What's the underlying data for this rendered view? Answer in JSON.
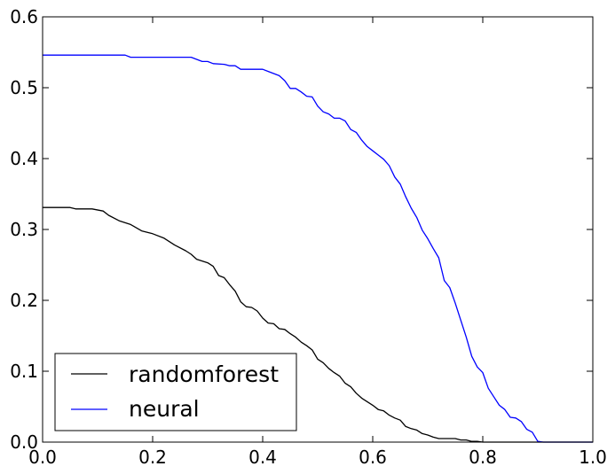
{
  "chart_data": {
    "type": "line",
    "title": "",
    "xlabel": "",
    "ylabel": "",
    "xlim": [
      0.0,
      1.0
    ],
    "ylim": [
      0.0,
      0.6
    ],
    "grid": false,
    "legend_position": "bottom-left",
    "xticks": [
      0.0,
      0.2,
      0.4,
      0.6,
      0.8,
      1.0
    ],
    "yticks": [
      0.0,
      0.1,
      0.2,
      0.3,
      0.4,
      0.5,
      0.6
    ],
    "xtick_labels": [
      "0.0",
      "0.2",
      "0.4",
      "0.6",
      "0.8",
      "1.0"
    ],
    "ytick_labels": [
      "0.0",
      "0.1",
      "0.2",
      "0.3",
      "0.4",
      "0.5",
      "0.6"
    ],
    "series": [
      {
        "name": "randomforest",
        "color": "#000000",
        "points": [
          [
            0.0,
            0.331
          ],
          [
            0.05,
            0.331
          ],
          [
            0.06,
            0.329
          ],
          [
            0.09,
            0.329
          ],
          [
            0.11,
            0.326
          ],
          [
            0.12,
            0.32
          ],
          [
            0.14,
            0.312
          ],
          [
            0.16,
            0.307
          ],
          [
            0.18,
            0.298
          ],
          [
            0.2,
            0.294
          ],
          [
            0.22,
            0.288
          ],
          [
            0.24,
            0.278
          ],
          [
            0.26,
            0.27
          ],
          [
            0.27,
            0.265
          ],
          [
            0.28,
            0.258
          ],
          [
            0.3,
            0.253
          ],
          [
            0.31,
            0.248
          ],
          [
            0.32,
            0.235
          ],
          [
            0.33,
            0.232
          ],
          [
            0.34,
            0.222
          ],
          [
            0.35,
            0.213
          ],
          [
            0.36,
            0.198
          ],
          [
            0.37,
            0.191
          ],
          [
            0.38,
            0.19
          ],
          [
            0.39,
            0.185
          ],
          [
            0.4,
            0.175
          ],
          [
            0.41,
            0.168
          ],
          [
            0.42,
            0.167
          ],
          [
            0.43,
            0.16
          ],
          [
            0.44,
            0.159
          ],
          [
            0.45,
            0.153
          ],
          [
            0.46,
            0.148
          ],
          [
            0.47,
            0.141
          ],
          [
            0.48,
            0.136
          ],
          [
            0.49,
            0.13
          ],
          [
            0.5,
            0.117
          ],
          [
            0.51,
            0.112
          ],
          [
            0.52,
            0.104
          ],
          [
            0.53,
            0.098
          ],
          [
            0.54,
            0.093
          ],
          [
            0.55,
            0.083
          ],
          [
            0.56,
            0.078
          ],
          [
            0.57,
            0.069
          ],
          [
            0.58,
            0.062
          ],
          [
            0.59,
            0.057
          ],
          [
            0.6,
            0.052
          ],
          [
            0.61,
            0.046
          ],
          [
            0.62,
            0.044
          ],
          [
            0.63,
            0.038
          ],
          [
            0.64,
            0.034
          ],
          [
            0.65,
            0.031
          ],
          [
            0.66,
            0.022
          ],
          [
            0.67,
            0.019
          ],
          [
            0.68,
            0.017
          ],
          [
            0.69,
            0.012
          ],
          [
            0.7,
            0.01
          ],
          [
            0.71,
            0.007
          ],
          [
            0.72,
            0.005
          ],
          [
            0.75,
            0.005
          ],
          [
            0.76,
            0.003
          ],
          [
            0.77,
            0.003
          ],
          [
            0.78,
            0.001
          ],
          [
            0.79,
            0.001
          ],
          [
            0.8,
            0.0
          ],
          [
            1.0,
            0.0
          ]
        ]
      },
      {
        "name": "neural",
        "color": "#0000ff",
        "points": [
          [
            0.0,
            0.546
          ],
          [
            0.15,
            0.546
          ],
          [
            0.16,
            0.543
          ],
          [
            0.27,
            0.543
          ],
          [
            0.28,
            0.54
          ],
          [
            0.29,
            0.537
          ],
          [
            0.3,
            0.537
          ],
          [
            0.31,
            0.534
          ],
          [
            0.33,
            0.533
          ],
          [
            0.34,
            0.531
          ],
          [
            0.35,
            0.531
          ],
          [
            0.36,
            0.526
          ],
          [
            0.4,
            0.526
          ],
          [
            0.41,
            0.523
          ],
          [
            0.42,
            0.52
          ],
          [
            0.43,
            0.517
          ],
          [
            0.44,
            0.51
          ],
          [
            0.45,
            0.499
          ],
          [
            0.46,
            0.499
          ],
          [
            0.47,
            0.494
          ],
          [
            0.48,
            0.488
          ],
          [
            0.49,
            0.487
          ],
          [
            0.5,
            0.474
          ],
          [
            0.51,
            0.466
          ],
          [
            0.52,
            0.463
          ],
          [
            0.53,
            0.457
          ],
          [
            0.54,
            0.457
          ],
          [
            0.55,
            0.453
          ],
          [
            0.56,
            0.441
          ],
          [
            0.57,
            0.437
          ],
          [
            0.58,
            0.426
          ],
          [
            0.59,
            0.417
          ],
          [
            0.6,
            0.411
          ],
          [
            0.61,
            0.405
          ],
          [
            0.62,
            0.399
          ],
          [
            0.63,
            0.39
          ],
          [
            0.64,
            0.374
          ],
          [
            0.65,
            0.364
          ],
          [
            0.66,
            0.346
          ],
          [
            0.67,
            0.33
          ],
          [
            0.68,
            0.317
          ],
          [
            0.69,
            0.299
          ],
          [
            0.7,
            0.287
          ],
          [
            0.71,
            0.273
          ],
          [
            0.72,
            0.26
          ],
          [
            0.73,
            0.228
          ],
          [
            0.74,
            0.218
          ],
          [
            0.75,
            0.196
          ],
          [
            0.76,
            0.172
          ],
          [
            0.77,
            0.148
          ],
          [
            0.78,
            0.121
          ],
          [
            0.79,
            0.106
          ],
          [
            0.8,
            0.098
          ],
          [
            0.81,
            0.076
          ],
          [
            0.82,
            0.064
          ],
          [
            0.83,
            0.052
          ],
          [
            0.84,
            0.046
          ],
          [
            0.85,
            0.035
          ],
          [
            0.86,
            0.034
          ],
          [
            0.87,
            0.029
          ],
          [
            0.88,
            0.018
          ],
          [
            0.89,
            0.014
          ],
          [
            0.9,
            0.001
          ],
          [
            0.91,
            0.0
          ],
          [
            1.0,
            0.0
          ]
        ]
      }
    ]
  }
}
